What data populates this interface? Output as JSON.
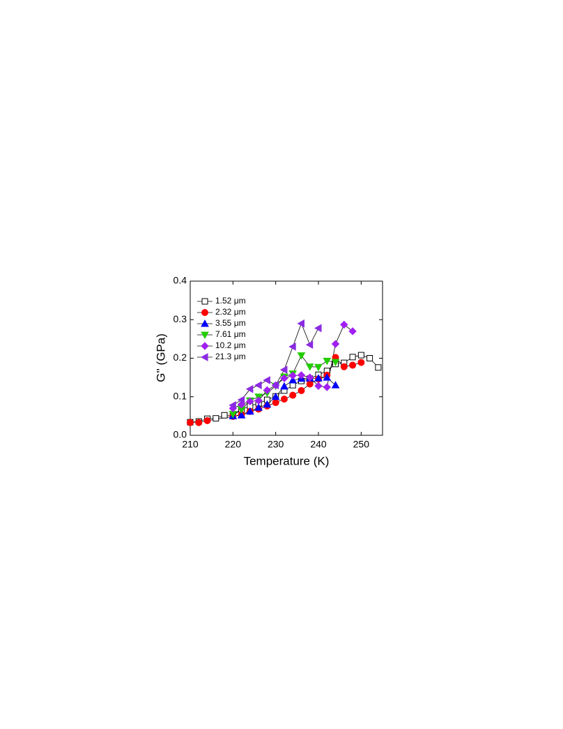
{
  "chart_data": {
    "type": "line",
    "xlabel": "Temperature (K)",
    "ylabel": "G'' (GPa)",
    "xlim": [
      210,
      255
    ],
    "ylim": [
      0,
      0.4
    ],
    "xticks": [
      210,
      220,
      230,
      240,
      250
    ],
    "yticks": [
      {
        "value": 0,
        "label": "0.0"
      },
      0.1,
      0.2,
      0.3,
      0.4
    ],
    "legend": "upper-left",
    "series": [
      {
        "name": "1.52 μm",
        "color": "#000000",
        "marker": "square-open",
        "x": [
          210,
          212,
          214,
          216,
          218,
          220,
          222,
          224,
          226,
          228,
          230,
          232,
          234,
          236,
          238,
          240,
          242,
          244,
          246,
          248,
          250,
          252,
          254
        ],
        "values": [
          0.034,
          0.036,
          0.043,
          0.044,
          0.052,
          0.052,
          0.067,
          0.076,
          0.083,
          0.092,
          0.101,
          0.116,
          0.13,
          0.141,
          0.147,
          0.157,
          0.167,
          0.185,
          0.188,
          0.203,
          0.208,
          0.2,
          0.176
        ]
      },
      {
        "name": "2.32 μm",
        "color": "#ff0000",
        "marker": "circle",
        "x": [
          210,
          212,
          214,
          220,
          222,
          224,
          226,
          228,
          230,
          232,
          234,
          236,
          238,
          240,
          242,
          244,
          246,
          248,
          250
        ],
        "values": [
          0.033,
          0.033,
          0.038,
          0.049,
          0.054,
          0.062,
          0.068,
          0.076,
          0.085,
          0.094,
          0.104,
          0.116,
          0.133,
          0.146,
          0.156,
          0.202,
          0.178,
          0.182,
          0.189
        ]
      },
      {
        "name": "3.55 μm",
        "color": "#0000ff",
        "marker": "triangle-up",
        "x": [
          220,
          222,
          224,
          226,
          228,
          230,
          232,
          234,
          236,
          238,
          240,
          242,
          244
        ],
        "values": [
          0.05,
          0.052,
          0.062,
          0.072,
          0.08,
          0.1,
          0.127,
          0.143,
          0.147,
          0.148,
          0.148,
          0.15,
          0.13
        ]
      },
      {
        "name": "7.61 μm",
        "color": "#22cc00",
        "marker": "triangle-down",
        "x": [
          220,
          222,
          224,
          226,
          228,
          230,
          232,
          234,
          236,
          238,
          240,
          242,
          244
        ],
        "values": [
          0.055,
          0.067,
          0.09,
          0.1,
          0.11,
          0.128,
          0.152,
          0.16,
          0.207,
          0.178,
          0.177,
          0.193,
          0.19
        ]
      },
      {
        "name": "10.2 μm",
        "color": "#a020f0",
        "marker": "diamond",
        "x": [
          220,
          222,
          224,
          226,
          228,
          230,
          232,
          234,
          236,
          238,
          240,
          242,
          244,
          246,
          248
        ],
        "values": [
          0.07,
          0.08,
          0.088,
          0.09,
          0.117,
          0.13,
          0.148,
          0.155,
          0.156,
          0.15,
          0.128,
          0.125,
          0.237,
          0.287,
          0.27
        ]
      },
      {
        "name": "21.3 μm",
        "color": "#8a2be2",
        "marker": "triangle-left",
        "x": [
          220,
          222,
          224,
          226,
          228,
          230,
          232,
          234,
          236,
          238,
          240
        ],
        "values": [
          0.078,
          0.092,
          0.12,
          0.13,
          0.143,
          0.13,
          0.17,
          0.23,
          0.29,
          0.235,
          0.278
        ]
      }
    ]
  }
}
